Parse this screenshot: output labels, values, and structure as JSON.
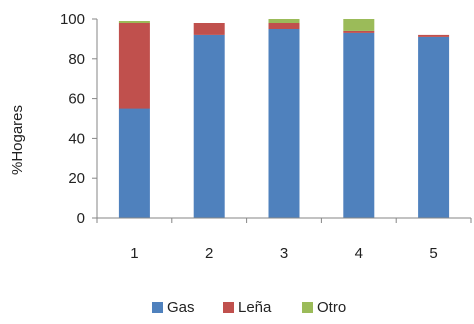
{
  "chart_data": {
    "type": "bar",
    "stacked": true,
    "categories": [
      "1",
      "2",
      "3",
      "4",
      "5"
    ],
    "series": [
      {
        "name": "Gas",
        "values": [
          55,
          92,
          95,
          93,
          91
        ],
        "color": "#4F81BD"
      },
      {
        "name": "Leña",
        "values": [
          43,
          6,
          3,
          1,
          1
        ],
        "color": "#C0504D"
      },
      {
        "name": "Otro",
        "values": [
          1,
          0,
          2,
          6,
          0
        ],
        "color": "#9BBB59"
      }
    ],
    "yticks": [
      "0",
      "20",
      "40",
      "60",
      "80",
      "100"
    ],
    "ylabel": "%Hogares",
    "xlabel": "",
    "ylim": [
      0,
      100
    ],
    "grid": false,
    "legend_position": "bottom"
  }
}
